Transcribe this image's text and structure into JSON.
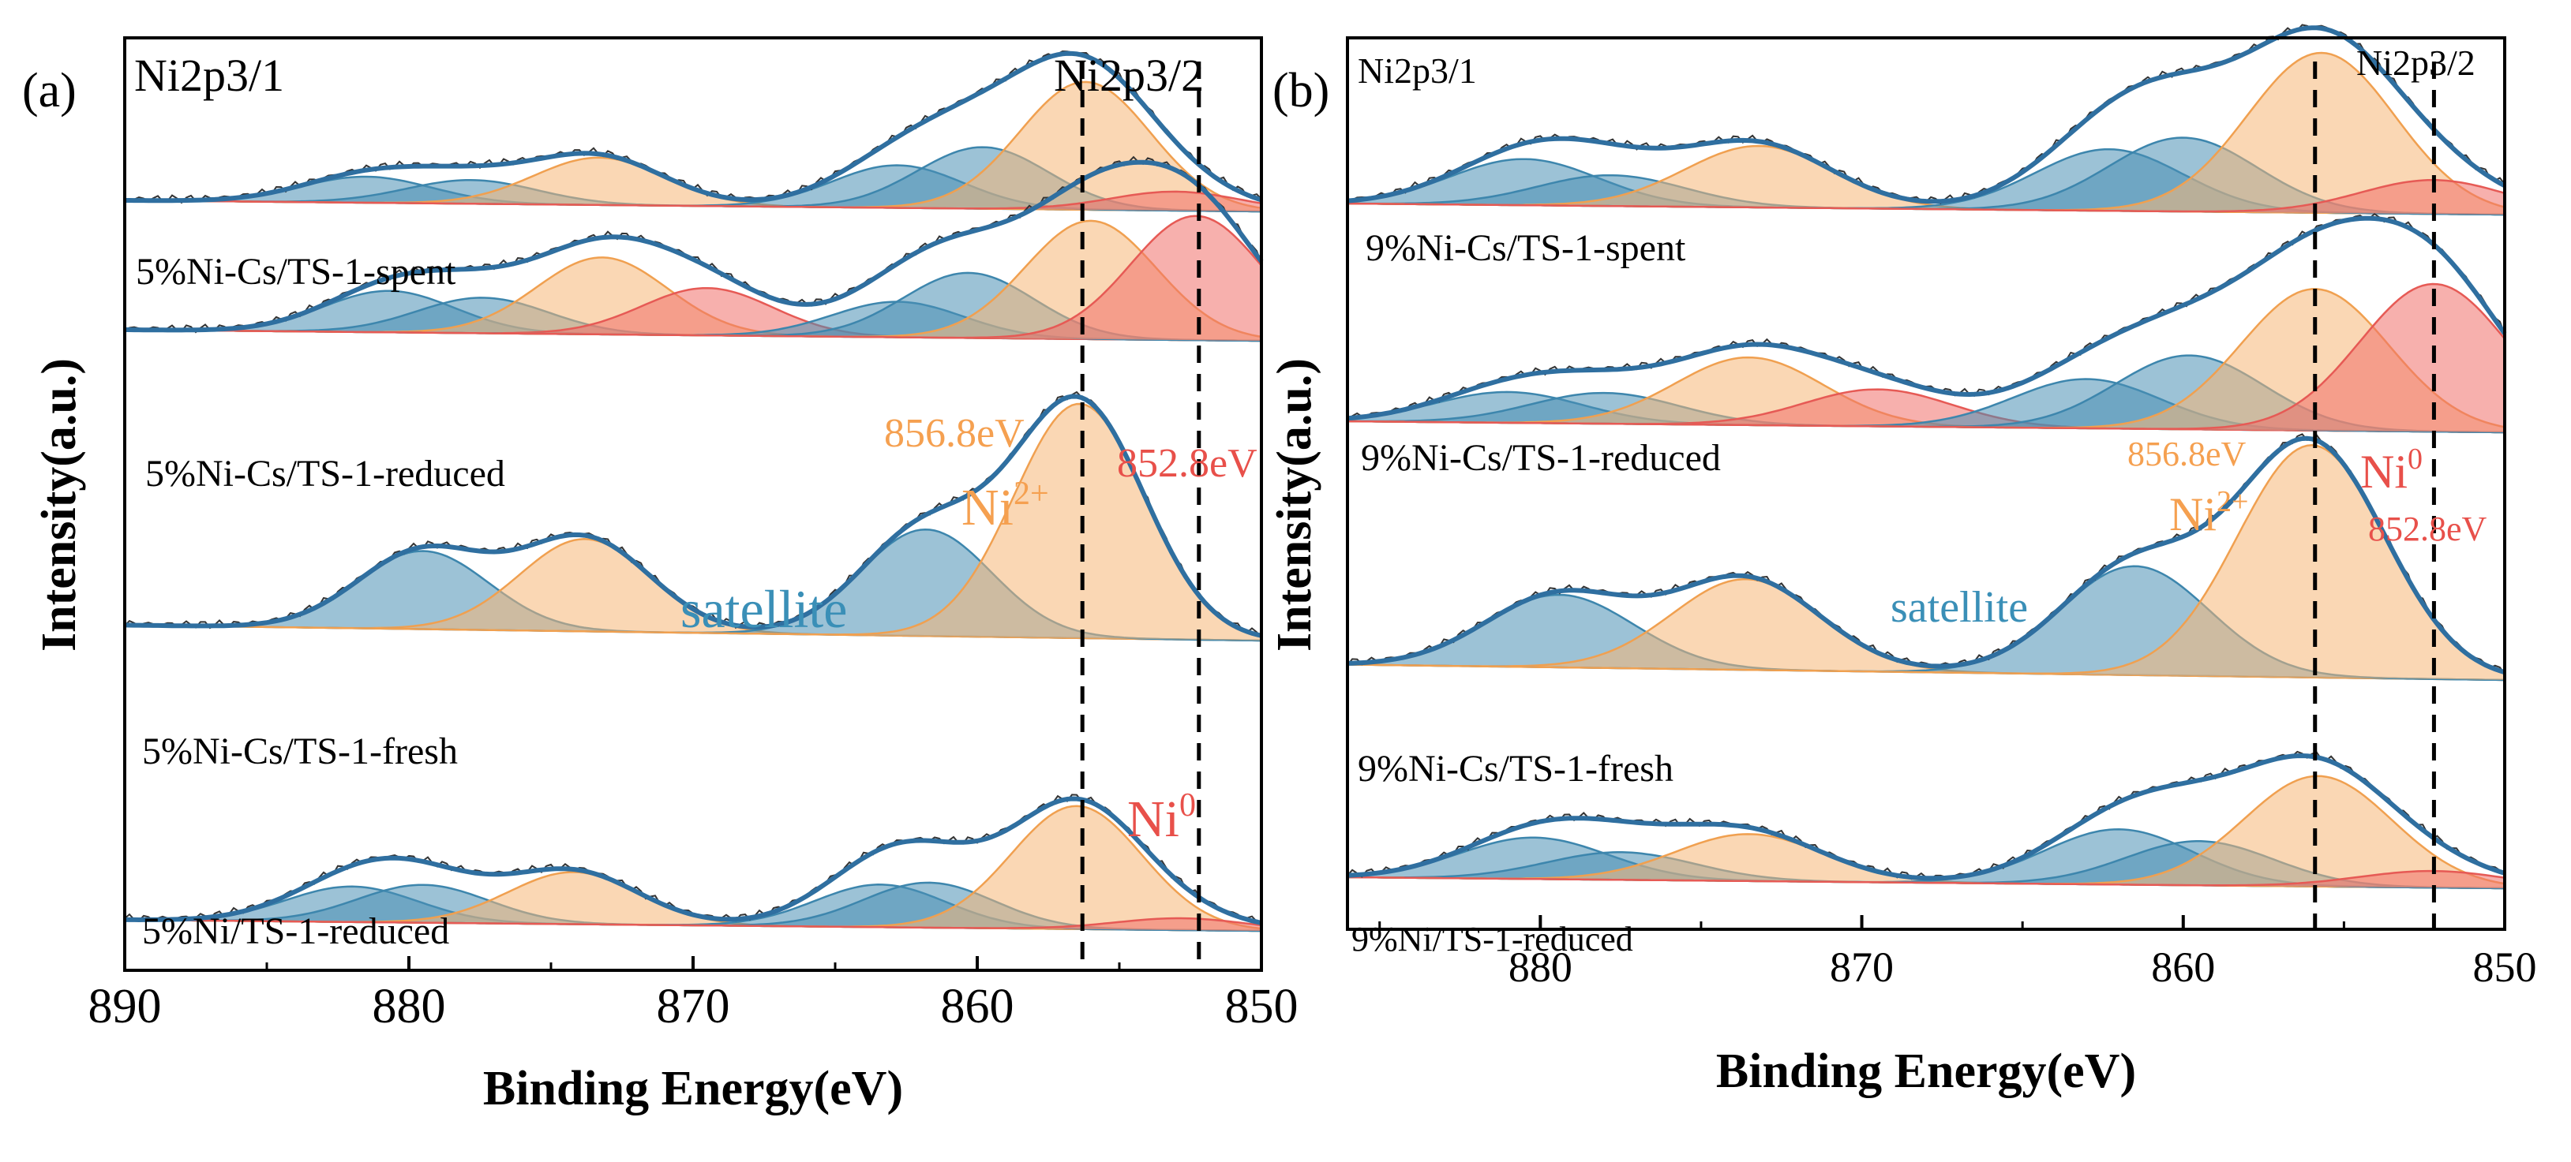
{
  "chart_data": [
    {
      "type": "line",
      "subtype": "XPS stacked spectra with peak-fit components",
      "panel_label": "(a)",
      "xlabel": "Binding Energy(eV)",
      "ylabel": "Intensity(a.u.)",
      "xlim": [
        890,
        850
      ],
      "x_reversed": true,
      "x_ticks": [
        "890",
        "880",
        "870",
        "860",
        "850"
      ],
      "colors": {
        "ni2": "#f5b776",
        "ni0": "#f0706a",
        "sat": "#4a90b4",
        "env": "#2f6fa0",
        "raw": "#333333"
      },
      "region_labels": {
        "left": "Ni2p3/1",
        "right": "Ni2p3/2"
      },
      "annotations": {
        "ni2_energy": "856.8eV",
        "ni2_label": "Ni",
        "ni2_sup": "2+",
        "ni0_energy": "852.8eV",
        "ni0_label": "Ni",
        "ni0_sup": "0",
        "satellite": "satellite"
      },
      "ref_lines": [
        856.3,
        852.2
      ],
      "series": [
        {
          "name": "top (unlabeled)",
          "label": "",
          "peaks": [
            {
              "kind": "sat",
              "c": 881.5,
              "a": 0.55
            },
            {
              "kind": "sat",
              "c": 877.8,
              "a": 0.5
            },
            {
              "kind": "ni2",
              "c": 873.3,
              "a": 1.0
            },
            {
              "kind": "sat",
              "c": 862.8,
              "a": 0.9
            },
            {
              "kind": "sat",
              "c": 859.8,
              "a": 1.3
            },
            {
              "kind": "ni2",
              "c": 856.2,
              "a": 2.7
            },
            {
              "kind": "ni0",
              "c": 853.0,
              "a": 0.4
            }
          ]
        },
        {
          "name": "5%Ni-Cs/TS-1-spent",
          "label": "5%Ni-Cs/TS-1-spent",
          "peaks": [
            {
              "kind": "sat",
              "c": 880.7,
              "a": 0.7
            },
            {
              "kind": "sat",
              "c": 877.4,
              "a": 0.6
            },
            {
              "kind": "ni2",
              "c": 873.2,
              "a": 1.3
            },
            {
              "kind": "ni0",
              "c": 869.5,
              "a": 0.8
            },
            {
              "kind": "sat",
              "c": 862.8,
              "a": 0.6
            },
            {
              "kind": "sat",
              "c": 860.3,
              "a": 1.1
            },
            {
              "kind": "ni2",
              "c": 856.0,
              "a": 2.0
            },
            {
              "kind": "ni0",
              "c": 852.3,
              "a": 2.1
            }
          ]
        },
        {
          "name": "5%Ni-Cs/TS-1-reduced",
          "label": "5%Ni-Cs/TS-1-reduced",
          "peaks": [
            {
              "kind": "sat",
              "c": 879.5,
              "a": 1.1
            },
            {
              "kind": "ni2",
              "c": 873.8,
              "a": 1.3
            },
            {
              "kind": "sat",
              "c": 861.8,
              "a": 1.5
            },
            {
              "kind": "ni2",
              "c": 856.4,
              "a": 3.3
            }
          ]
        },
        {
          "name": "5%Ni-Cs/TS-1-fresh",
          "label": "5%Ni-Cs/TS-1-fresh",
          "peaks": [
            {
              "kind": "sat",
              "c": 882.0,
              "a": 0.75
            },
            {
              "kind": "sat",
              "c": 879.5,
              "a": 0.8
            },
            {
              "kind": "ni2",
              "c": 874.2,
              "a": 1.1
            },
            {
              "kind": "sat",
              "c": 863.4,
              "a": 0.9
            },
            {
              "kind": "sat",
              "c": 861.7,
              "a": 0.95
            },
            {
              "kind": "ni2",
              "c": 856.5,
              "a": 2.6
            },
            {
              "kind": "ni0",
              "c": 852.8,
              "a": 0.25
            }
          ]
        }
      ],
      "bottom_label": "5%Ni/TS-1-reduced"
    },
    {
      "type": "line",
      "subtype": "XPS stacked spectra with peak-fit components",
      "panel_label": "(b)",
      "xlabel": "Binding Energy(eV)",
      "ylabel": "Intensity(a.u.)",
      "xlim": [
        886,
        850
      ],
      "x_reversed": true,
      "x_ticks": [
        "880",
        "870",
        "860",
        "850"
      ],
      "colors": {
        "ni2": "#f5b776",
        "ni0": "#f0706a",
        "sat": "#4a90b4",
        "env": "#2f6fa0",
        "raw": "#333333"
      },
      "region_labels": {
        "left": "Ni2p3/1",
        "right": "Ni2p3/2"
      },
      "annotations": {
        "ni2_energy": "856.8eV",
        "ni2_label": "Ni",
        "ni2_sup": "2+",
        "ni0_energy": "852.8eV",
        "ni0_label": "Ni",
        "ni0_sup": "0",
        "satellite": "satellite"
      },
      "ref_lines": [
        855.9,
        852.2
      ],
      "series": [
        {
          "name": "top (unlabeled)",
          "label": "",
          "peaks": [
            {
              "kind": "sat",
              "c": 880.5,
              "a": 0.75
            },
            {
              "kind": "sat",
              "c": 877.8,
              "a": 0.5
            },
            {
              "kind": "ni2",
              "c": 873.2,
              "a": 1.0
            },
            {
              "kind": "sat",
              "c": 862.3,
              "a": 1.0
            },
            {
              "kind": "sat",
              "c": 860.0,
              "a": 1.2
            },
            {
              "kind": "ni2",
              "c": 855.7,
              "a": 2.6
            },
            {
              "kind": "ni0",
              "c": 852.2,
              "a": 0.55
            }
          ]
        },
        {
          "name": "9%Ni-Cs/TS-1-spent",
          "label": "9%Ni-Cs/TS-1-spent",
          "peaks": [
            {
              "kind": "sat",
              "c": 881.0,
              "a": 0.5
            },
            {
              "kind": "sat",
              "c": 878.0,
              "a": 0.5
            },
            {
              "kind": "ni2",
              "c": 873.5,
              "a": 1.1
            },
            {
              "kind": "ni0",
              "c": 869.5,
              "a": 0.6
            },
            {
              "kind": "sat",
              "c": 863.0,
              "a": 0.8
            },
            {
              "kind": "sat",
              "c": 859.8,
              "a": 1.2
            },
            {
              "kind": "ni2",
              "c": 855.9,
              "a": 2.3
            },
            {
              "kind": "ni0",
              "c": 852.2,
              "a": 2.4
            }
          ]
        },
        {
          "name": "9%Ni-Cs/TS-1-reduced",
          "label": "9%Ni-Cs/TS-1-reduced",
          "peaks": [
            {
              "kind": "sat",
              "c": 879.4,
              "a": 1.0
            },
            {
              "kind": "ni2",
              "c": 873.6,
              "a": 1.25
            },
            {
              "kind": "sat",
              "c": 861.5,
              "a": 1.5
            },
            {
              "kind": "ni2",
              "c": 856.0,
              "a": 3.2
            }
          ]
        },
        {
          "name": "9%Ni-Cs/TS-1-fresh",
          "label": "9%Ni-Cs/TS-1-fresh",
          "peaks": [
            {
              "kind": "sat",
              "c": 880.2,
              "a": 0.75
            },
            {
              "kind": "sat",
              "c": 877.5,
              "a": 0.5
            },
            {
              "kind": "ni2",
              "c": 873.5,
              "a": 0.85
            },
            {
              "kind": "sat",
              "c": 862.0,
              "a": 1.0
            },
            {
              "kind": "sat",
              "c": 859.5,
              "a": 0.8
            },
            {
              "kind": "ni2",
              "c": 855.8,
              "a": 2.0
            },
            {
              "kind": "ni0",
              "c": 852.2,
              "a": 0.3
            }
          ]
        }
      ],
      "bottom_label": "9%Ni/TS-1-reduced"
    }
  ]
}
